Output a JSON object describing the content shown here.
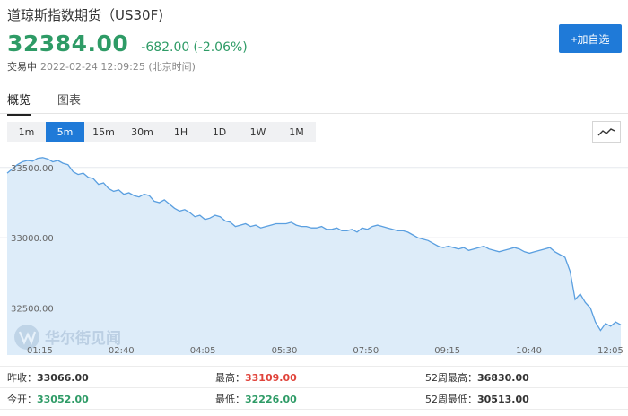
{
  "header": {
    "title": "道琼斯指数期货（US30F)",
    "price": "32384.00",
    "change": "-682.00",
    "change_pct": "(-2.06%)",
    "status": "交易中",
    "timestamp": "2022-02-24 12:09:25 (北京时间)",
    "watch_button": "+加自选"
  },
  "colors": {
    "down": "#2e9b66",
    "up": "#e0433a",
    "accent": "#1f7ad8",
    "line": "#5a9fe0",
    "fill": "#ddecf9"
  },
  "tabs": [
    {
      "label": "概览",
      "active": true
    },
    {
      "label": "图表",
      "active": false
    }
  ],
  "intervals": [
    {
      "label": "1m",
      "active": false
    },
    {
      "label": "5m",
      "active": true
    },
    {
      "label": "15m",
      "active": false
    },
    {
      "label": "30m",
      "active": false
    },
    {
      "label": "1H",
      "active": false
    },
    {
      "label": "1D",
      "active": false
    },
    {
      "label": "1W",
      "active": false
    },
    {
      "label": "1M",
      "active": false
    }
  ],
  "chart_type_icon": "line-chart-icon",
  "watermark": "华尔街见闻",
  "chart_data": {
    "type": "area",
    "y_ticks": [
      "33500.00",
      "33000.00",
      "32500.00"
    ],
    "x_ticks": [
      "01:15",
      "02:40",
      "04:05",
      "05:30",
      "07:50",
      "09:15",
      "10:40",
      "12:05"
    ],
    "ylim": [
      32280,
      33620
    ],
    "series": [
      {
        "values": [
          33460,
          33490,
          33520,
          33540,
          33550,
          33545,
          33565,
          33570,
          33560,
          33540,
          33550,
          33530,
          33520,
          33470,
          33450,
          33460,
          33430,
          33420,
          33380,
          33390,
          33350,
          33330,
          33340,
          33310,
          33320,
          33300,
          33290,
          33310,
          33300,
          33260,
          33250,
          33270,
          33240,
          33210,
          33190,
          33200,
          33180,
          33150,
          33160,
          33130,
          33140,
          33160,
          33150,
          33120,
          33110,
          33080,
          33090,
          33100,
          33080,
          33090,
          33070,
          33080,
          33090,
          33100,
          33100,
          33100,
          33110,
          33090,
          33080,
          33080,
          33070,
          33070,
          33080,
          33060,
          33060,
          33070,
          33050,
          33050,
          33060,
          33040,
          33070,
          33060,
          33080,
          33090,
          33080,
          33070,
          33060,
          33050,
          33050,
          33040,
          33020,
          33000,
          32990,
          32980,
          32960,
          32940,
          32930,
          32940,
          32930,
          32920,
          32930,
          32910,
          32920,
          32930,
          32940,
          32920,
          32910,
          32900,
          32910,
          32920,
          32930,
          32920,
          32900,
          32890,
          32900,
          32910,
          32920,
          32930,
          32900,
          32880,
          32860,
          32760,
          32560,
          32600,
          32540,
          32500,
          32400,
          32340,
          32390,
          32370,
          32400,
          32380
        ]
      }
    ]
  },
  "stats": [
    [
      {
        "label": "昨收：",
        "value": "33066.00",
        "tone": "neutral"
      },
      {
        "label": "最高：",
        "value": "33109.00",
        "tone": "up"
      },
      {
        "label": "52周最高：",
        "value": "36830.00",
        "tone": "neutral"
      }
    ],
    [
      {
        "label": "今开：",
        "value": "33052.00",
        "tone": "down"
      },
      {
        "label": "最低：",
        "value": "32226.00",
        "tone": "down"
      },
      {
        "label": "52周最低：",
        "value": "30513.00",
        "tone": "neutral"
      }
    ]
  ]
}
